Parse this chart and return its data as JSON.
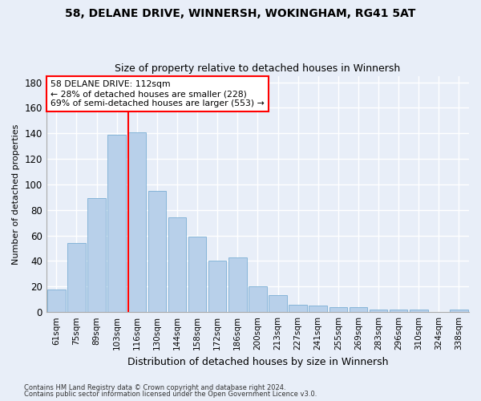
{
  "title": "58, DELANE DRIVE, WINNERSH, WOKINGHAM, RG41 5AT",
  "subtitle": "Size of property relative to detached houses in Winnersh",
  "xlabel": "Distribution of detached houses by size in Winnersh",
  "ylabel": "Number of detached properties",
  "categories": [
    "61sqm",
    "75sqm",
    "89sqm",
    "103sqm",
    "116sqm",
    "130sqm",
    "144sqm",
    "158sqm",
    "172sqm",
    "186sqm",
    "200sqm",
    "213sqm",
    "227sqm",
    "241sqm",
    "255sqm",
    "269sqm",
    "283sqm",
    "296sqm",
    "310sqm",
    "324sqm",
    "338sqm"
  ],
  "values": [
    18,
    54,
    89,
    139,
    141,
    95,
    74,
    59,
    40,
    43,
    20,
    13,
    6,
    5,
    4,
    4,
    2,
    2,
    2,
    0,
    2
  ],
  "bar_color": "#b8d0ea",
  "bar_edge_color": "#7aaed4",
  "vline_color": "red",
  "annotation_line1": "58 DELANE DRIVE: 112sqm",
  "annotation_line2": "← 28% of detached houses are smaller (228)",
  "annotation_line3": "69% of semi-detached houses are larger (553) →",
  "ylim": [
    0,
    185
  ],
  "yticks": [
    0,
    20,
    40,
    60,
    80,
    100,
    120,
    140,
    160,
    180
  ],
  "footer1": "Contains HM Land Registry data © Crown copyright and database right 2024.",
  "footer2": "Contains public sector information licensed under the Open Government Licence v3.0.",
  "background_color": "#e8eef8",
  "plot_bg_color": "#e8eef8",
  "vline_position": 3.575
}
